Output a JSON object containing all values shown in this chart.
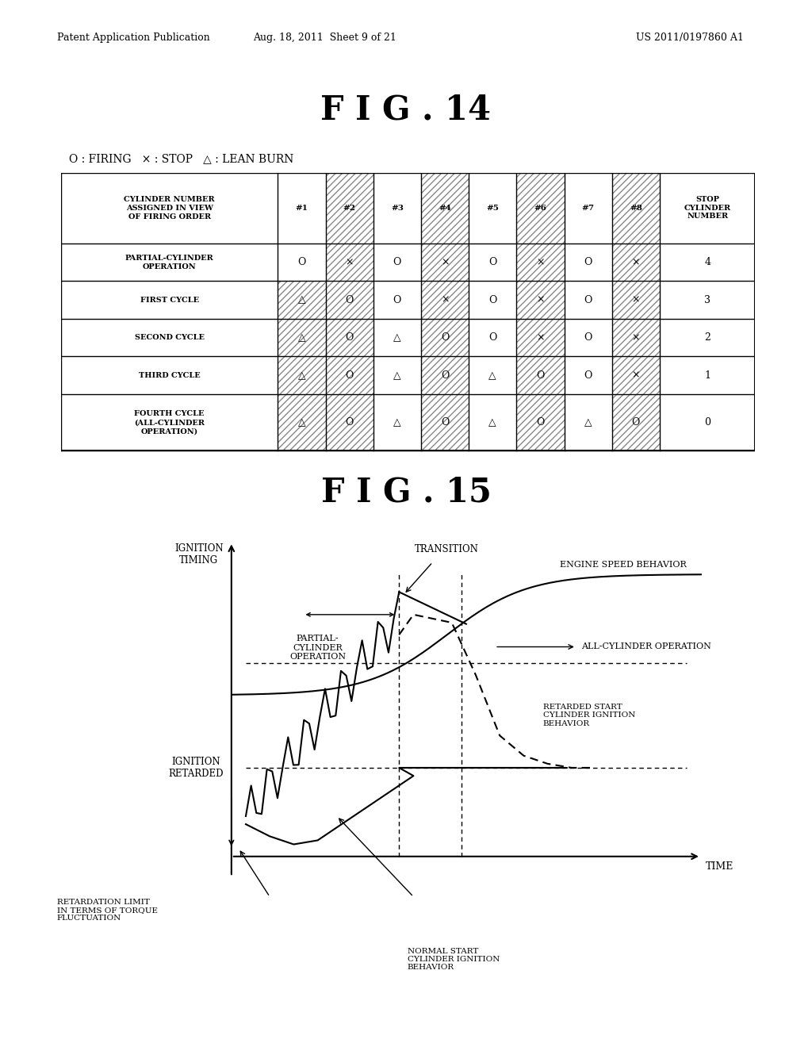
{
  "header_text_left": "Patent Application Publication",
  "header_text_mid": "Aug. 18, 2011  Sheet 9 of 21",
  "header_text_right": "US 2011/0197860 A1",
  "fig14_title": "F I G . 14",
  "fig15_title": "F I G . 15",
  "legend_text": "O : FIRING   × : STOP   △ : LEAN BURN",
  "table": {
    "row_labels": [
      "CYLINDER NUMBER\nASSIGNED IN VIEW\nOF FIRING ORDER",
      "PARTIAL-CYLINDER\nOPERATION",
      "FIRST CYCLE",
      "SECOND CYCLE",
      "THIRD CYCLE",
      "FOURTH CYCLE\n(ALL-CYLINDER\nOPERATION)"
    ],
    "col_labels": [
      "#1",
      "#2",
      "#3",
      "#4",
      "#5",
      "#6",
      "#7",
      "#8",
      "STOP\nCYLINDER\nNUMBER"
    ],
    "cells": [
      [
        "O",
        "×",
        "O",
        "×",
        "O",
        "×",
        "O",
        "×",
        "4"
      ],
      [
        "△",
        "O",
        "O",
        "×",
        "O",
        "×",
        "O",
        "×",
        "3"
      ],
      [
        "△",
        "O",
        "△",
        "O",
        "O",
        "×",
        "O",
        "×",
        "2"
      ],
      [
        "△",
        "O",
        "△",
        "O",
        "△",
        "O",
        "O",
        "×",
        "1"
      ],
      [
        "△",
        "O",
        "△",
        "O",
        "△",
        "O",
        "△",
        "O",
        "0"
      ]
    ]
  },
  "graph": {
    "xlabel": "TIME",
    "label_partial": "PARTIAL-\nCYLINDER\nOPERATION",
    "label_all_cyl": "ALL-CYLINDER OPERATION",
    "label_transition": "TRANSITION",
    "label_engine_speed": "ENGINE SPEED BEHAVIOR",
    "label_retarded_start": "RETARDED START\nCYLINDER IGNITION\nBEHAVIOR",
    "label_normal_start": "NORMAL START\nCYLINDER IGNITION\nBEHAVIOR",
    "label_retardation": "RETARDATION LIMIT\nIN TERMS OF TORQUE\nFLUCTUATION",
    "label_ignition_timing": "IGNITION\nTIMING",
    "label_ignition_retarded": "IGNITION\nRETARDED"
  }
}
